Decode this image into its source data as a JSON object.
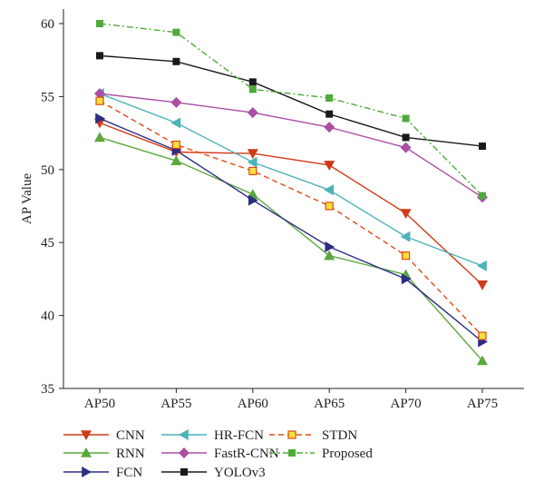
{
  "chart_data": {
    "type": "line",
    "ylabel": "AP Value",
    "xlabel": "",
    "categories": [
      "AP50",
      "AP55",
      "AP60",
      "AP65",
      "AP70",
      "AP75"
    ],
    "ylim": [
      35,
      60
    ],
    "yticks": [
      "35",
      "40",
      "45",
      "50",
      "55",
      "60"
    ],
    "grid": false,
    "legend": "bottom",
    "series": [
      {
        "name": "CNN",
        "color": "#d03a17",
        "marker": "triangle-down",
        "dash": "solid",
        "values": [
          53.2,
          51.2,
          51.1,
          50.3,
          47.0,
          42.1
        ]
      },
      {
        "name": "RNN",
        "color": "#5aa83c",
        "marker": "triangle-up",
        "dash": "solid",
        "values": [
          52.2,
          50.6,
          48.3,
          44.1,
          42.8,
          36.9
        ]
      },
      {
        "name": "FCN",
        "color": "#2e2d84",
        "marker": "triangle-right",
        "dash": "solid",
        "values": [
          53.5,
          51.3,
          47.9,
          44.7,
          42.5,
          38.2
        ]
      },
      {
        "name": "HR-FCN",
        "color": "#4cb3b8",
        "marker": "triangle-left",
        "dash": "solid",
        "values": [
          55.2,
          53.2,
          50.5,
          48.6,
          45.4,
          43.4
        ]
      },
      {
        "name": "FastR-CNN",
        "color": "#ab4fa4",
        "marker": "diamond",
        "dash": "solid",
        "values": [
          55.2,
          54.6,
          53.9,
          52.9,
          51.5,
          48.1
        ]
      },
      {
        "name": "YOLOv3",
        "color": "#1a1a1a",
        "marker": "square",
        "dash": "solid",
        "values": [
          57.8,
          57.4,
          56.0,
          53.8,
          52.2,
          51.6
        ]
      },
      {
        "name": "STDN",
        "color": "#e04a14",
        "marker": "square-open",
        "markerFill": "#f5e13c",
        "dash": "dashed",
        "values": [
          54.7,
          51.7,
          49.9,
          47.5,
          44.1,
          38.6
        ]
      },
      {
        "name": "Proposed",
        "color": "#4faa3a",
        "marker": "square",
        "dash": "dashdot",
        "values": [
          60.0,
          59.4,
          55.5,
          54.9,
          53.5,
          48.2
        ]
      }
    ]
  }
}
